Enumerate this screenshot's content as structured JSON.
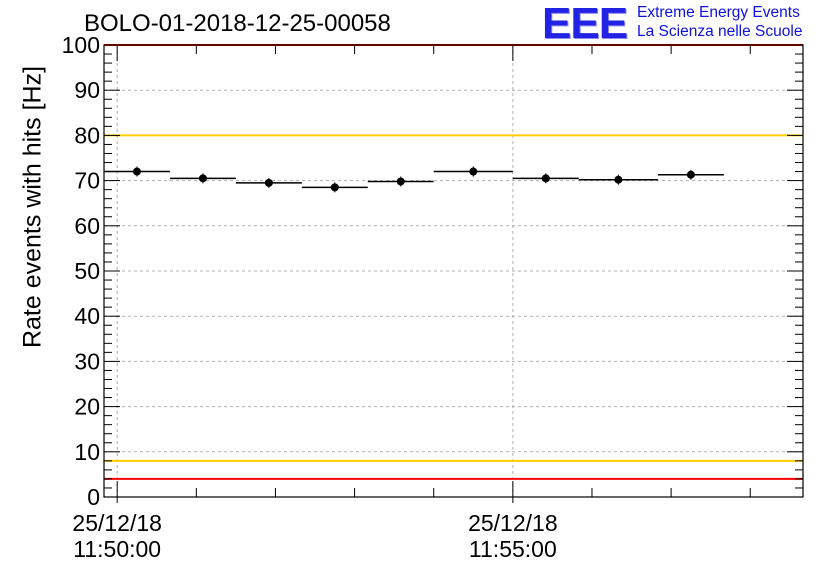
{
  "title": "BOLO-01-2018-12-25-00058",
  "logo": {
    "mark": "EEE",
    "line1": "Extreme Energy Events",
    "line2": "La Scienza nelle Scuole",
    "color": "#2323e6"
  },
  "chart_data": {
    "type": "scatter",
    "title": "BOLO-01-2018-12-25-00058",
    "ylabel": "Rate events with hits [Hz]",
    "xlabel": "",
    "ylim": [
      0,
      100
    ],
    "yticks": [
      0,
      10,
      20,
      30,
      40,
      50,
      60,
      70,
      80,
      90,
      100
    ],
    "xlim": [
      "2018-12-25 11:49:50",
      "2018-12-25 11:58:40"
    ],
    "xticks": [
      {
        "date": "25/12/18",
        "time": "11:50:00",
        "at": "2018-12-25 11:50:00"
      },
      {
        "date": "25/12/18",
        "time": "11:55:00",
        "at": "2018-12-25 11:55:00"
      }
    ],
    "grid": true,
    "series": [
      {
        "points": [
          {
            "x_start": "11:49:50",
            "x_end": "11:50:40",
            "y": 72.0
          },
          {
            "x_start": "11:50:40",
            "x_end": "11:51:30",
            "y": 70.5
          },
          {
            "x_start": "11:51:30",
            "x_end": "11:52:20",
            "y": 69.5
          },
          {
            "x_start": "11:52:20",
            "x_end": "11:53:10",
            "y": 68.5
          },
          {
            "x_start": "11:53:10",
            "x_end": "11:54:00",
            "y": 69.8
          },
          {
            "x_start": "11:54:00",
            "x_end": "11:55:00",
            "y": 72.0
          },
          {
            "x_start": "11:55:00",
            "x_end": "11:55:50",
            "y": 70.5
          },
          {
            "x_start": "11:55:50",
            "x_end": "11:56:50",
            "y": 70.2
          },
          {
            "x_start": "11:56:50",
            "x_end": "11:57:40",
            "y": 71.3
          }
        ],
        "color": "#000000"
      }
    ],
    "reference_lines": [
      {
        "y": 100,
        "color": "#ff0000"
      },
      {
        "y": 80,
        "color": "#ffcc00"
      },
      {
        "y": 8,
        "color": "#ffcc00"
      },
      {
        "y": 4,
        "color": "#ff0000"
      }
    ]
  }
}
